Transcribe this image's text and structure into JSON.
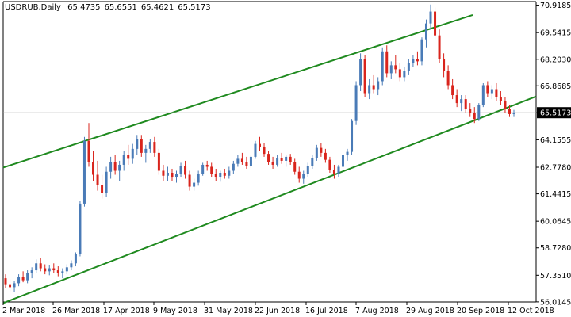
{
  "header": {
    "symbol_timeframe": "USDRUB,Daily",
    "open": "65.4735",
    "high": "65.6551",
    "low": "65.4621",
    "close": "65.5173"
  },
  "colors": {
    "background": "#ffffff",
    "bull_candle": "#4a7bb7",
    "bear_candle": "#d9241c",
    "channel_line": "#1f8a1f",
    "price_line": "#b0b0b0",
    "price_label_bg": "#000000",
    "axis": "#000000"
  },
  "chart_data": {
    "type": "candlestick",
    "symbol": "USDRUB",
    "timeframe": "Daily",
    "current_price": 65.5173,
    "ylim": [
      56.01,
      71.1
    ],
    "y_ticks": [
      "70.9185",
      "69.5415",
      "68.2030",
      "66.8685",
      "65.5173",
      "64.1555",
      "62.7780",
      "61.4415",
      "60.0645",
      "58.7280",
      "57.3510",
      "56.0145"
    ],
    "x_ticks": [
      "2 Mar 2018",
      "26 Mar 2018",
      "17 Apr 2018",
      "9 May 2018",
      "31 May 2018",
      "22 Jun 2018",
      "16 Jul 2018",
      "7 Aug 2018",
      "29 Aug 2018",
      "20 Sep 2018",
      "12 Oct 2018"
    ],
    "candles": [
      [
        57.2,
        57.4,
        56.7,
        56.9
      ],
      [
        56.9,
        57.15,
        56.55,
        56.75
      ],
      [
        56.75,
        57.05,
        56.5,
        56.95
      ],
      [
        56.95,
        57.4,
        56.8,
        57.25
      ],
      [
        57.25,
        57.55,
        57.0,
        57.1
      ],
      [
        57.1,
        57.6,
        56.95,
        57.45
      ],
      [
        57.45,
        57.75,
        57.2,
        57.6
      ],
      [
        57.6,
        58.15,
        57.45,
        57.95
      ],
      [
        57.95,
        58.2,
        57.55,
        57.7
      ],
      [
        57.7,
        57.9,
        57.4,
        57.55
      ],
      [
        57.55,
        57.85,
        57.35,
        57.7
      ],
      [
        57.7,
        57.95,
        57.45,
        57.6
      ],
      [
        57.6,
        57.8,
        57.3,
        57.45
      ],
      [
        57.45,
        57.7,
        57.2,
        57.55
      ],
      [
        57.55,
        57.9,
        57.4,
        57.75
      ],
      [
        57.75,
        58.1,
        57.6,
        57.95
      ],
      [
        57.95,
        58.5,
        57.8,
        58.4
      ],
      [
        58.4,
        61.1,
        58.3,
        60.95
      ],
      [
        60.95,
        64.3,
        60.8,
        64.1
      ],
      [
        64.1,
        65.0,
        62.8,
        63.05
      ],
      [
        63.05,
        63.6,
        62.1,
        62.4
      ],
      [
        62.4,
        63.1,
        61.6,
        61.9
      ],
      [
        61.9,
        62.4,
        61.2,
        61.5
      ],
      [
        61.5,
        62.8,
        61.3,
        62.55
      ],
      [
        62.55,
        63.3,
        62.2,
        63.05
      ],
      [
        63.05,
        63.4,
        62.4,
        62.6
      ],
      [
        62.6,
        63.1,
        62.1,
        62.9
      ],
      [
        62.9,
        63.6,
        62.6,
        63.4
      ],
      [
        63.4,
        63.9,
        62.9,
        63.2
      ],
      [
        63.2,
        63.95,
        62.95,
        63.7
      ],
      [
        63.7,
        64.4,
        63.4,
        64.2
      ],
      [
        64.2,
        64.4,
        63.3,
        63.5
      ],
      [
        63.5,
        63.9,
        63.0,
        63.7
      ],
      [
        63.7,
        64.2,
        63.5,
        64.05
      ],
      [
        64.05,
        64.3,
        63.3,
        63.5
      ],
      [
        63.5,
        63.7,
        62.4,
        62.6
      ],
      [
        62.6,
        62.9,
        62.1,
        62.35
      ],
      [
        62.35,
        62.8,
        62.1,
        62.5
      ],
      [
        62.5,
        62.7,
        62.1,
        62.3
      ],
      [
        62.3,
        62.6,
        62.0,
        62.45
      ],
      [
        62.45,
        63.0,
        62.3,
        62.85
      ],
      [
        62.85,
        63.1,
        62.2,
        62.4
      ],
      [
        62.4,
        62.6,
        61.6,
        61.8
      ],
      [
        61.8,
        62.2,
        61.6,
        62.0
      ],
      [
        62.0,
        62.6,
        61.85,
        62.45
      ],
      [
        62.45,
        63.0,
        62.35,
        62.9
      ],
      [
        62.9,
        63.1,
        62.6,
        62.8
      ],
      [
        62.8,
        63.0,
        62.3,
        62.45
      ],
      [
        62.45,
        62.7,
        62.1,
        62.3
      ],
      [
        62.3,
        62.6,
        62.05,
        62.5
      ],
      [
        62.5,
        62.7,
        62.2,
        62.35
      ],
      [
        62.35,
        62.8,
        62.2,
        62.6
      ],
      [
        62.6,
        63.1,
        62.45,
        62.95
      ],
      [
        62.95,
        63.4,
        62.8,
        63.2
      ],
      [
        63.2,
        63.5,
        62.9,
        63.05
      ],
      [
        63.05,
        63.3,
        62.7,
        62.85
      ],
      [
        62.85,
        63.4,
        62.75,
        63.3
      ],
      [
        63.3,
        64.1,
        63.2,
        63.95
      ],
      [
        63.95,
        64.3,
        63.6,
        63.8
      ],
      [
        63.8,
        64.0,
        63.3,
        63.45
      ],
      [
        63.45,
        63.6,
        62.9,
        63.05
      ],
      [
        63.05,
        63.3,
        62.7,
        62.9
      ],
      [
        62.9,
        63.4,
        62.8,
        63.25
      ],
      [
        63.25,
        63.5,
        62.95,
        63.1
      ],
      [
        63.1,
        63.4,
        62.8,
        63.3
      ],
      [
        63.3,
        63.45,
        62.9,
        63.05
      ],
      [
        63.05,
        63.2,
        62.4,
        62.55
      ],
      [
        62.55,
        62.8,
        62.0,
        62.2
      ],
      [
        62.2,
        62.6,
        61.95,
        62.45
      ],
      [
        62.45,
        63.0,
        62.3,
        62.85
      ],
      [
        62.85,
        63.4,
        62.7,
        63.25
      ],
      [
        63.25,
        63.9,
        63.1,
        63.75
      ],
      [
        63.75,
        64.0,
        63.3,
        63.5
      ],
      [
        63.5,
        63.7,
        63.0,
        63.15
      ],
      [
        63.15,
        63.3,
        62.5,
        62.65
      ],
      [
        62.65,
        62.9,
        62.2,
        62.45
      ],
      [
        62.45,
        62.9,
        62.3,
        62.8
      ],
      [
        62.8,
        63.5,
        62.7,
        63.4
      ],
      [
        63.4,
        63.7,
        63.1,
        63.55
      ],
      [
        63.55,
        65.2,
        63.4,
        65.1
      ],
      [
        65.1,
        67.1,
        64.9,
        66.9
      ],
      [
        66.9,
        68.5,
        66.6,
        68.2
      ],
      [
        68.2,
        68.4,
        66.3,
        66.5
      ],
      [
        66.5,
        67.2,
        66.2,
        66.9
      ],
      [
        66.9,
        67.4,
        66.5,
        66.7
      ],
      [
        66.7,
        67.3,
        66.4,
        67.1
      ],
      [
        67.1,
        68.8,
        66.9,
        68.6
      ],
      [
        68.6,
        68.9,
        67.3,
        67.5
      ],
      [
        67.5,
        68.1,
        67.2,
        67.9
      ],
      [
        67.9,
        68.4,
        67.5,
        67.7
      ],
      [
        67.7,
        68.0,
        67.1,
        67.3
      ],
      [
        67.3,
        67.8,
        67.1,
        67.6
      ],
      [
        67.6,
        68.2,
        67.4,
        68.0
      ],
      [
        68.0,
        68.4,
        67.8,
        68.2
      ],
      [
        68.2,
        68.6,
        67.9,
        68.1
      ],
      [
        68.1,
        69.3,
        67.9,
        69.2
      ],
      [
        69.2,
        70.2,
        68.8,
        70.0
      ],
      [
        70.0,
        70.95,
        69.7,
        70.6
      ],
      [
        70.6,
        70.8,
        69.2,
        69.4
      ],
      [
        69.4,
        69.7,
        68.0,
        68.2
      ],
      [
        68.2,
        68.5,
        67.3,
        67.6
      ],
      [
        67.6,
        67.9,
        66.7,
        66.9
      ],
      [
        66.9,
        67.2,
        66.2,
        66.4
      ],
      [
        66.4,
        66.7,
        65.8,
        66.0
      ],
      [
        66.0,
        66.4,
        65.6,
        66.2
      ],
      [
        66.2,
        66.4,
        65.5,
        65.7
      ],
      [
        65.7,
        66.0,
        65.3,
        65.5
      ],
      [
        65.5,
        65.8,
        65.0,
        65.2
      ],
      [
        65.2,
        66.0,
        65.1,
        65.9
      ],
      [
        65.9,
        67.0,
        65.8,
        66.9
      ],
      [
        66.9,
        67.1,
        66.3,
        66.5
      ],
      [
        66.5,
        66.9,
        66.2,
        66.7
      ],
      [
        66.7,
        67.0,
        66.1,
        66.3
      ],
      [
        66.3,
        66.6,
        65.9,
        66.1
      ],
      [
        66.1,
        66.3,
        65.5,
        65.7
      ],
      [
        65.7,
        65.9,
        65.3,
        65.45
      ],
      [
        65.45,
        65.66,
        65.3,
        65.52
      ]
    ],
    "channel_lines": [
      {
        "name": "upper",
        "x": [
          "2 Mar 2018",
          "12 Oct 2018"
        ],
        "y": [
          62.8,
          71.1
        ]
      },
      {
        "name": "lower",
        "x": [
          "2 Mar 2018",
          "12 Oct 2018"
        ],
        "y": [
          56.0,
          65.9
        ]
      }
    ]
  }
}
